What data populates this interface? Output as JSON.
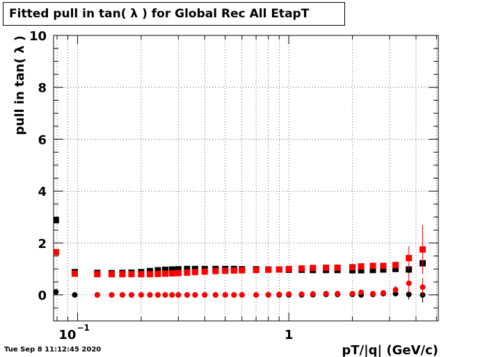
{
  "timestamp": "Tue Sep  8 11:12:45 2020",
  "chart_data": {
    "type": "scatter",
    "title": "Fitted pull in tan( λ ) for Global Rec All EtapT",
    "xlabel": "pT/|q| (GeV/c)",
    "ylabel": "pull in tan( λ )",
    "xscale": "log",
    "xlim": [
      0.077,
      5.1
    ],
    "ylim": [
      -1,
      10
    ],
    "grid": true,
    "x_tick_labels": [
      {
        "value": 0.1,
        "base": "10",
        "exp": "−1"
      },
      {
        "value": 1,
        "text": "1"
      }
    ],
    "y_ticks": [
      0,
      2,
      4,
      6,
      8,
      10
    ],
    "colors": {
      "black": "#000000",
      "red": "#ff0000"
    },
    "series": [
      {
        "color": "#000000",
        "marker": "square",
        "x": [
          0.079,
          0.097,
          0.124,
          0.145,
          0.163,
          0.18,
          0.2,
          0.22,
          0.24,
          0.26,
          0.28,
          0.3,
          0.33,
          0.36,
          0.4,
          0.45,
          0.5,
          0.55,
          0.6,
          0.7,
          0.8,
          0.9,
          1.0,
          1.15,
          1.3,
          1.5,
          1.7,
          2.0,
          2.2,
          2.5,
          2.8,
          3.2,
          3.7,
          4.3
        ],
        "y": [
          2.88,
          0.88,
          0.85,
          0.84,
          0.85,
          0.86,
          0.88,
          0.92,
          0.95,
          0.97,
          0.98,
          0.99,
          1.0,
          1.0,
          1.0,
          1.0,
          1.0,
          1.0,
          0.99,
          0.99,
          0.98,
          0.98,
          0.97,
          0.97,
          0.96,
          0.96,
          0.96,
          0.95,
          0.95,
          0.96,
          0.98,
          1.0,
          0.98,
          1.22
        ],
        "yerr": [
          0.05,
          0.03,
          0.02,
          0.02,
          0.02,
          0.02,
          0.02,
          0.02,
          0.02,
          0.02,
          0.02,
          0.02,
          0.02,
          0.02,
          0.02,
          0.02,
          0.02,
          0.02,
          0.02,
          0.02,
          0.02,
          0.02,
          0.02,
          0.02,
          0.03,
          0.03,
          0.03,
          0.04,
          0.04,
          0.06,
          0.08,
          0.1,
          0.15,
          0.25
        ]
      },
      {
        "color": "#000000",
        "marker": "circle",
        "x": [
          0.079,
          0.097,
          0.124,
          0.145,
          0.163,
          0.18,
          0.2,
          0.22,
          0.24,
          0.26,
          0.28,
          0.3,
          0.33,
          0.36,
          0.4,
          0.45,
          0.5,
          0.55,
          0.6,
          0.7,
          0.8,
          0.9,
          1.0,
          1.15,
          1.3,
          1.5,
          1.7,
          2.0,
          2.2,
          2.5,
          2.8,
          3.2,
          3.7,
          4.3
        ],
        "y": [
          0.12,
          0.0,
          0.0,
          0.0,
          0.0,
          0.0,
          0.0,
          0.0,
          0.0,
          0.0,
          0.0,
          0.0,
          0.0,
          0.0,
          0.0,
          0.0,
          0.0,
          0.0,
          0.0,
          0.0,
          0.0,
          0.0,
          0.0,
          0.0,
          0.01,
          0.02,
          0.02,
          0.02,
          0.0,
          0.02,
          0.05,
          0.05,
          0.02,
          0.0
        ],
        "yerr": [
          0.03,
          0.02,
          0.02,
          0.02,
          0.02,
          0.02,
          0.02,
          0.02,
          0.02,
          0.02,
          0.02,
          0.02,
          0.02,
          0.02,
          0.02,
          0.02,
          0.02,
          0.02,
          0.02,
          0.02,
          0.02,
          0.02,
          0.02,
          0.02,
          0.02,
          0.02,
          0.03,
          0.04,
          0.05,
          0.06,
          0.08,
          0.1,
          0.2,
          0.3
        ]
      },
      {
        "color": "#ff0000",
        "marker": "square",
        "x": [
          0.079,
          0.097,
          0.124,
          0.145,
          0.163,
          0.18,
          0.2,
          0.22,
          0.24,
          0.26,
          0.28,
          0.3,
          0.33,
          0.36,
          0.4,
          0.45,
          0.5,
          0.55,
          0.6,
          0.7,
          0.8,
          0.9,
          1.0,
          1.15,
          1.3,
          1.5,
          1.7,
          2.0,
          2.2,
          2.5,
          2.8,
          3.2,
          3.7,
          4.3
        ],
        "y": [
          1.65,
          0.82,
          0.8,
          0.8,
          0.8,
          0.8,
          0.8,
          0.8,
          0.81,
          0.82,
          0.83,
          0.84,
          0.86,
          0.88,
          0.9,
          0.92,
          0.93,
          0.94,
          0.95,
          0.96,
          0.97,
          0.98,
          1.0,
          1.02,
          1.04,
          1.05,
          1.05,
          1.07,
          1.1,
          1.12,
          1.12,
          1.15,
          1.42,
          1.75
        ],
        "yerr": [
          0.06,
          0.04,
          0.03,
          0.02,
          0.02,
          0.02,
          0.02,
          0.02,
          0.02,
          0.02,
          0.02,
          0.02,
          0.02,
          0.02,
          0.02,
          0.02,
          0.02,
          0.02,
          0.02,
          0.02,
          0.02,
          0.02,
          0.02,
          0.03,
          0.03,
          0.03,
          0.04,
          0.05,
          0.06,
          0.07,
          0.1,
          0.15,
          0.45,
          0.95
        ]
      },
      {
        "color": "#ff0000",
        "marker": "circle",
        "x": [
          0.124,
          0.145,
          0.163,
          0.18,
          0.2,
          0.22,
          0.24,
          0.26,
          0.28,
          0.3,
          0.33,
          0.36,
          0.4,
          0.45,
          0.5,
          0.55,
          0.6,
          0.7,
          0.8,
          0.9,
          1.0,
          1.15,
          1.3,
          1.5,
          1.7,
          2.0,
          2.2,
          2.5,
          2.8,
          3.2,
          3.7,
          4.3
        ],
        "y": [
          0.0,
          0.0,
          0.0,
          0.0,
          0.0,
          0.0,
          0.0,
          0.0,
          0.0,
          0.0,
          0.0,
          0.0,
          0.0,
          0.0,
          0.0,
          0.0,
          0.0,
          0.0,
          0.01,
          0.02,
          0.03,
          0.03,
          0.04,
          0.05,
          0.05,
          0.05,
          0.1,
          0.05,
          0.08,
          0.2,
          0.45,
          0.3
        ],
        "yerr": [
          0.03,
          0.02,
          0.02,
          0.02,
          0.02,
          0.02,
          0.02,
          0.02,
          0.02,
          0.02,
          0.02,
          0.02,
          0.02,
          0.02,
          0.02,
          0.02,
          0.02,
          0.02,
          0.02,
          0.02,
          0.02,
          0.02,
          0.02,
          0.03,
          0.03,
          0.04,
          0.06,
          0.08,
          0.1,
          0.15,
          0.4,
          0.35
        ]
      }
    ]
  }
}
